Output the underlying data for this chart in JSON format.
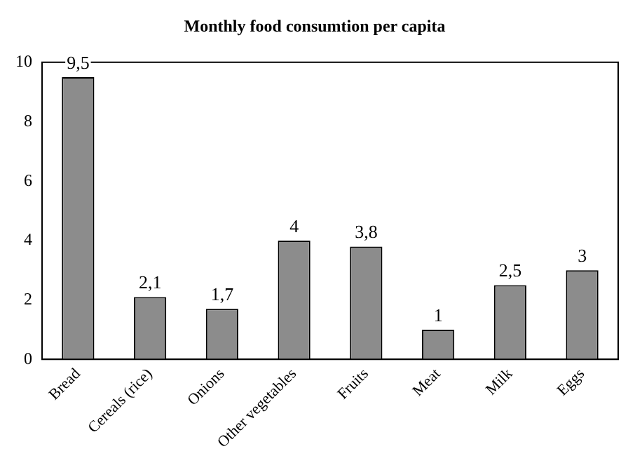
{
  "chart_data": {
    "type": "bar",
    "title": "Monthly food consumtion per capita",
    "categories": [
      "Bread",
      "Cereals (rice)",
      "Onions",
      "Other vegetables",
      "Fruits",
      "Meat",
      "Milk",
      "Eggs"
    ],
    "values": [
      9.5,
      2.1,
      1.7,
      4,
      3.8,
      1,
      2.5,
      3
    ],
    "value_labels": [
      "9,5",
      "2,1",
      "1,7",
      "4",
      "3,8",
      "1",
      "2,5",
      "3"
    ],
    "color": "#8c8c8c",
    "ylim": [
      0,
      10
    ],
    "yticks": [
      0,
      2,
      4,
      6,
      8,
      10
    ],
    "grid": false,
    "legend": false
  }
}
